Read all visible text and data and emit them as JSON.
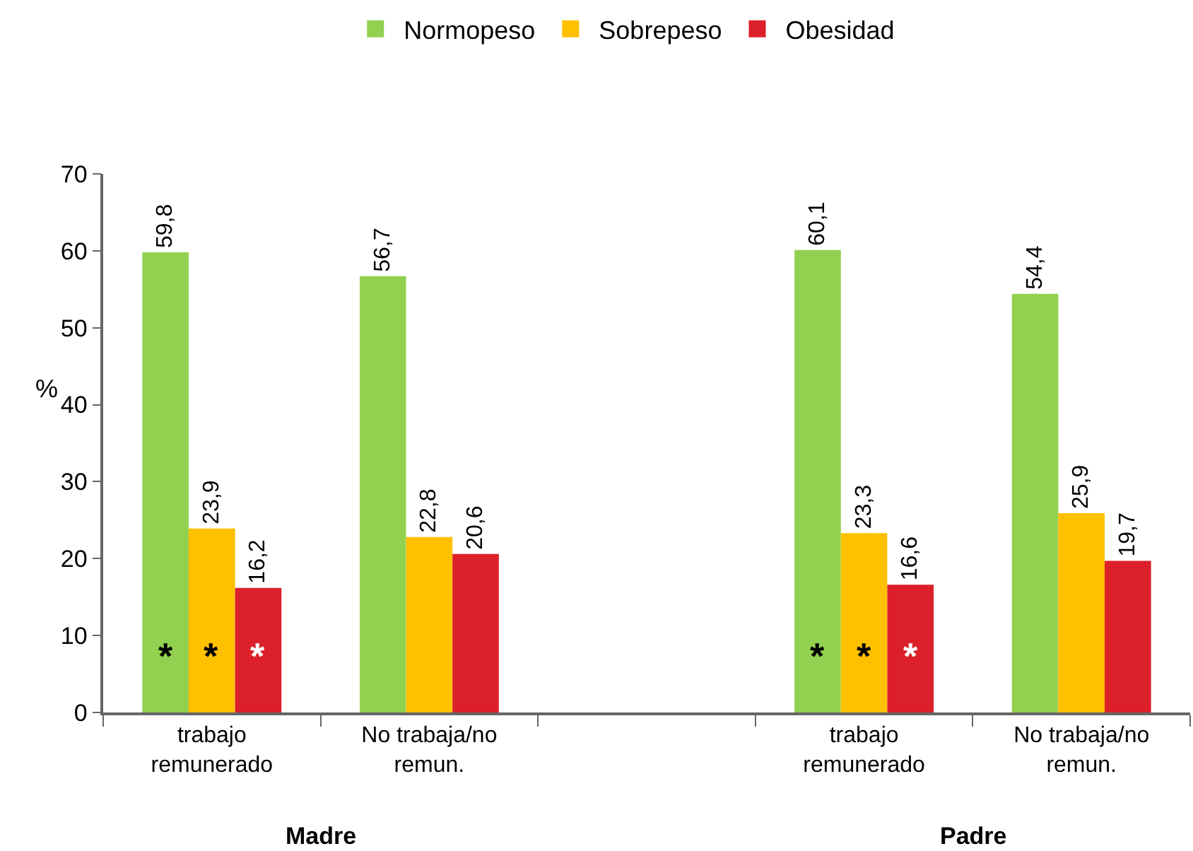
{
  "chart_data": {
    "type": "bar",
    "ylabel": "%",
    "categories": [
      "trabajo\nremunerado",
      "No trabaja/no\nremun.",
      null,
      "trabajo\nremunerado",
      "No trabaja/no\nremun."
    ],
    "series": [
      {
        "name": "Normopeso",
        "color": "#92d050",
        "values": [
          59.8,
          56.7,
          null,
          60.1,
          54.4
        ],
        "value_labels": [
          "59,8",
          "56,7",
          null,
          "60,1",
          "54,4"
        ]
      },
      {
        "name": "Sobrepeso",
        "color": "#ffc000",
        "values": [
          23.9,
          22.8,
          null,
          23.3,
          25.9
        ],
        "value_labels": [
          "23,9",
          "22,8",
          null,
          "23,3",
          "25,9"
        ]
      },
      {
        "name": "Obesidad",
        "color": "#dc202a",
        "values": [
          16.2,
          20.6,
          null,
          16.6,
          19.7
        ],
        "value_labels": [
          "16,2",
          "20,6",
          null,
          "16,6",
          "19,7"
        ]
      }
    ],
    "ylim": [
      0,
      70
    ],
    "yticks": [
      0,
      10,
      20,
      30,
      40,
      50,
      60,
      70
    ],
    "legend": "top",
    "annotations": [
      "Madre",
      "Padre",
      "*",
      "*",
      "*",
      "*",
      "*",
      "*"
    ]
  }
}
